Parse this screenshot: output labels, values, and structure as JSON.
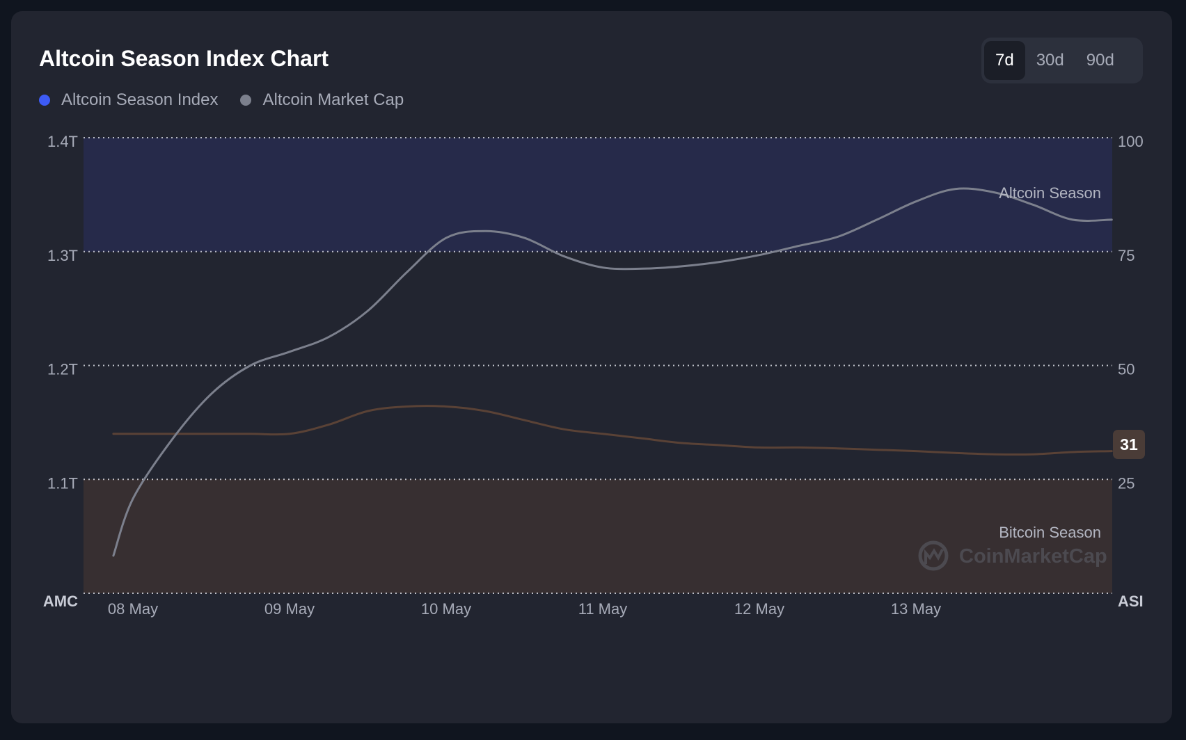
{
  "title": "Altcoin Season Index Chart",
  "legend": [
    {
      "label": "Altcoin Season Index",
      "color": "#3d5bf5"
    },
    {
      "label": "Altcoin Market Cap",
      "color": "#7c808d"
    }
  ],
  "range_tabs": [
    {
      "label": "7d",
      "active": true
    },
    {
      "label": "30d",
      "active": false
    },
    {
      "label": "90d",
      "active": false
    }
  ],
  "zones": {
    "altcoin_season_label": "Altcoin Season",
    "bitcoin_season_label": "Bitcoin Season"
  },
  "watermark": "CoinMarketCap",
  "current_badge": "31",
  "chart_data": {
    "type": "line",
    "title": "Altcoin Season Index Chart",
    "x": [
      "2025-05-07 21:00",
      "2025-05-08",
      "2025-05-08 06:00",
      "2025-05-08 12:00",
      "2025-05-08 18:00",
      "2025-05-09",
      "2025-05-09 06:00",
      "2025-05-09 12:00",
      "2025-05-09 18:00",
      "2025-05-10",
      "2025-05-10 06:00",
      "2025-05-10 12:00",
      "2025-05-10 18:00",
      "2025-05-11",
      "2025-05-11 06:00",
      "2025-05-11 12:00",
      "2025-05-11 18:00",
      "2025-05-12",
      "2025-05-12 06:00",
      "2025-05-12 12:00",
      "2025-05-12 18:00",
      "2025-05-13",
      "2025-05-13 06:00",
      "2025-05-13 12:00",
      "2025-05-13 18:00",
      "2025-05-14",
      "2025-05-14 06:00"
    ],
    "x_tick_labels": [
      "08 May",
      "09 May",
      "10 May",
      "11 May",
      "12 May",
      "13 May"
    ],
    "left_axis": {
      "label": "AMC",
      "ticks": [
        "1.4T",
        "1.3T",
        "1.2T",
        "1.1T"
      ],
      "ylim": [
        1.0,
        1.4
      ]
    },
    "right_axis": {
      "label": "ASI",
      "ticks": [
        "100",
        "75",
        "50",
        "25"
      ],
      "ylim": [
        0,
        100
      ]
    },
    "series": [
      {
        "axis": "right",
        "color": "#5a4236",
        "width": 3,
        "values": [
          35,
          35,
          35,
          35,
          35,
          35,
          37,
          40,
          41,
          41,
          40,
          38,
          36,
          35,
          34,
          33,
          32.5,
          32,
          32,
          31.8,
          31.5,
          31.2,
          30.8,
          30.5,
          30.5,
          31,
          31.2
        ]
      },
      {
        "axis": "left",
        "color": "#7c808d",
        "width": 3,
        "values": [
          1.033,
          1.083,
          1.135,
          1.175,
          1.2,
          1.212,
          1.225,
          1.248,
          1.282,
          1.312,
          1.318,
          1.312,
          1.296,
          1.286,
          1.285,
          1.287,
          1.291,
          1.297,
          1.305,
          1.313,
          1.328,
          1.344,
          1.355,
          1.352,
          1.341,
          1.328,
          1.328
        ]
      }
    ],
    "bands": [
      {
        "axis": "right",
        "from": 75,
        "to": 100,
        "color": "#262a4a"
      },
      {
        "axis": "right",
        "from": 0,
        "to": 25,
        "color": "#372f31"
      }
    ],
    "grid": "dotted horizontal"
  }
}
